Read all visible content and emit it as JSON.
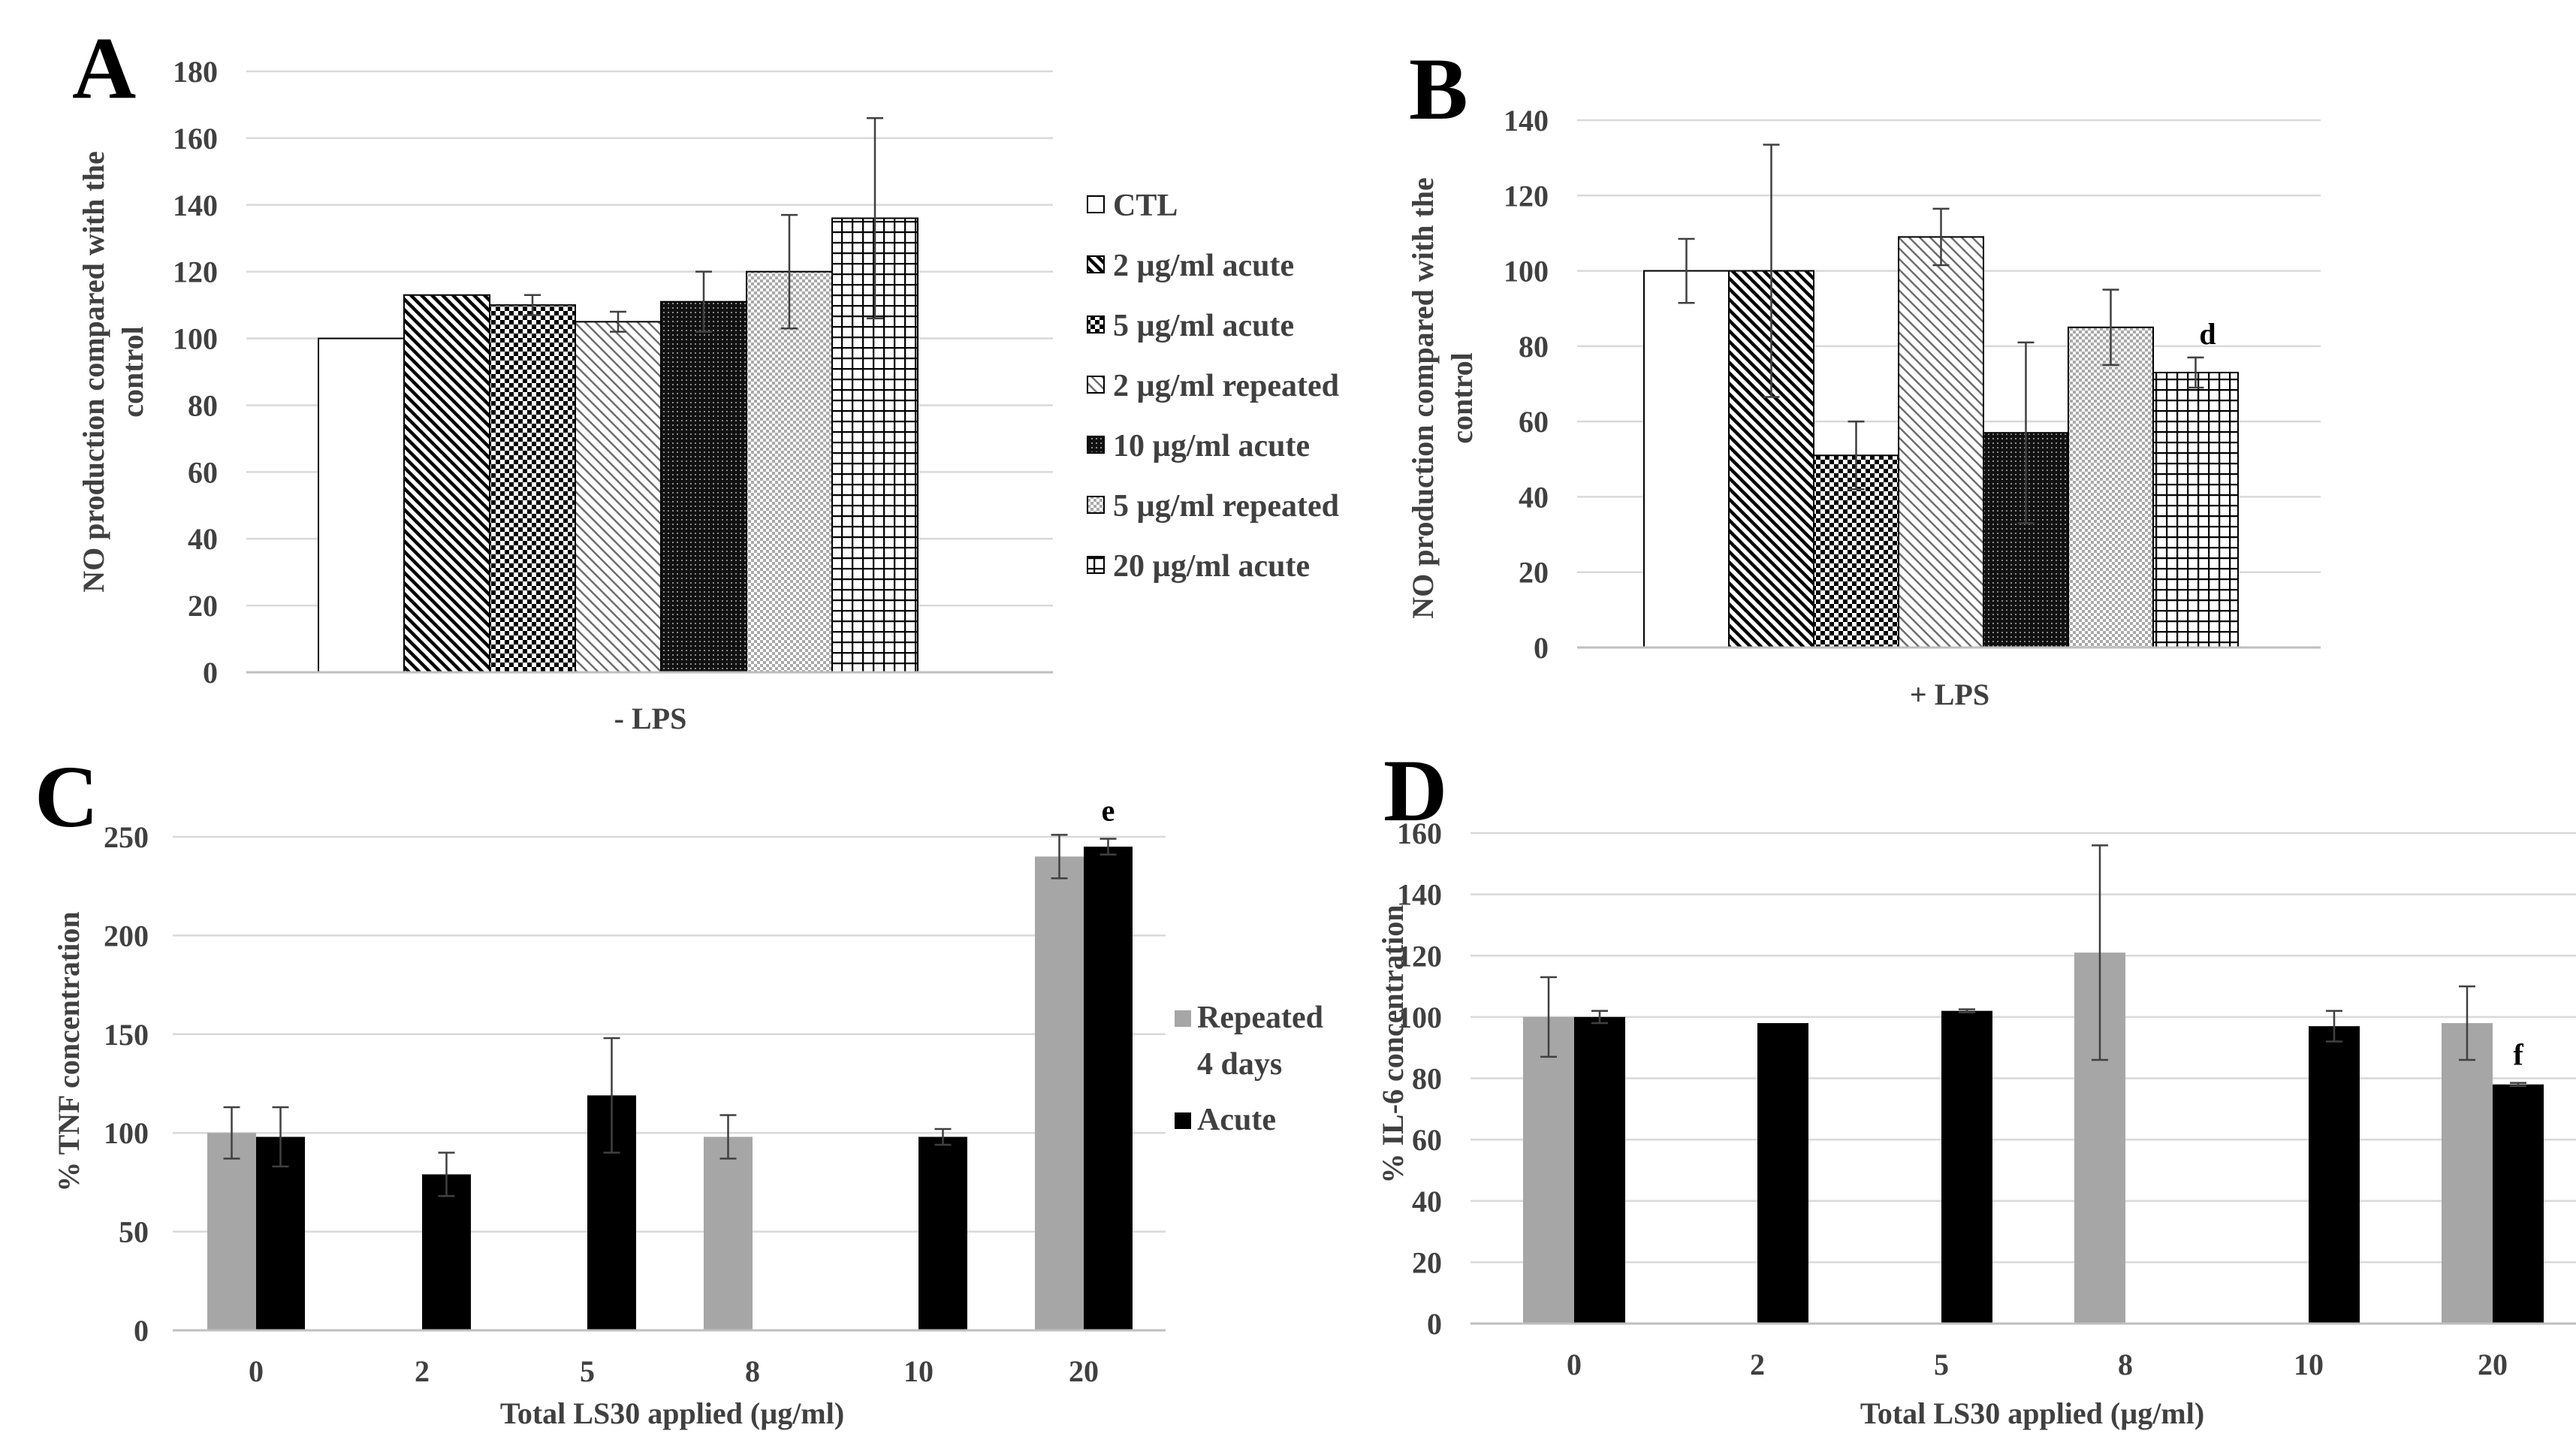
{
  "colors": {
    "grid": "#d9d9d9",
    "axis": "#bfbfbf",
    "text": "#404040",
    "bar_outline": "#000000",
    "repeated": "#a6a6a6",
    "acute": "#000000",
    "error_bar": "#404040"
  },
  "chart_data": [
    {
      "panel": "A",
      "type": "bar",
      "title": "",
      "category_label": "- LPS",
      "ylabel_line1": "NO production compared with the",
      "ylabel_line2": "control",
      "ylim": [
        0,
        180
      ],
      "yticks": [
        "0",
        "20",
        "40",
        "60",
        "80",
        "100",
        "120",
        "140",
        "160",
        "180"
      ],
      "grid": true,
      "legend_placement": "right",
      "series": [
        {
          "name": "CTL",
          "pattern": "white",
          "value": 100,
          "error": 0
        },
        {
          "name": "2 µg/ml acute",
          "pattern": "diag-wide",
          "value": 113,
          "error": 0
        },
        {
          "name": "5 µg/ml acute",
          "pattern": "checker",
          "value": 110,
          "error": 3
        },
        {
          "name": "2 µg/ml repeated",
          "pattern": "diag-light",
          "value": 105,
          "error": 3
        },
        {
          "name": "10 µg/ml acute",
          "pattern": "dark-dots",
          "value": 111,
          "error": 9
        },
        {
          "name": "5 µg/ml repeated",
          "pattern": "light-dots",
          "value": 120,
          "error": 17
        },
        {
          "name": "20 µg/ml acute",
          "pattern": "grid",
          "value": 136,
          "error": 30
        }
      ]
    },
    {
      "panel": "B",
      "type": "bar",
      "title": "",
      "category_label": "+ LPS",
      "ylabel_line1": "NO production compared with the",
      "ylabel_line2": "control",
      "ylim": [
        0,
        140
      ],
      "yticks": [
        "0",
        "20",
        "40",
        "60",
        "80",
        "100",
        "120",
        "140"
      ],
      "grid": true,
      "series": [
        {
          "name": "CTL",
          "pattern": "white",
          "value": 100,
          "error": 8.5,
          "label": ""
        },
        {
          "name": "2 µg/ml acute",
          "pattern": "diag-wide",
          "value": 100,
          "error": 33.5,
          "label": ""
        },
        {
          "name": "5 µg/ml acute",
          "pattern": "checker",
          "value": 51,
          "error": 9,
          "label": ""
        },
        {
          "name": "2 µg/ml repeated",
          "pattern": "diag-light",
          "value": 109,
          "error": 7.5,
          "label": ""
        },
        {
          "name": "10 µg/ml acute",
          "pattern": "dark-dots",
          "value": 57,
          "error": 24,
          "label": ""
        },
        {
          "name": "5 µg/ml repeated",
          "pattern": "light-dots",
          "value": 85,
          "error": 10,
          "label": ""
        },
        {
          "name": "20 µg/ml acute",
          "pattern": "grid",
          "value": 73,
          "error": 4,
          "label": "d"
        }
      ]
    },
    {
      "panel": "C",
      "type": "bar",
      "title": "",
      "xlabel": "Total LS30 applied (µg/ml)",
      "ylabel": "% TNF concentration",
      "categories": [
        "0",
        "2",
        "5",
        "8",
        "10",
        "20"
      ],
      "ylim": [
        0,
        250
      ],
      "yticks": [
        "0",
        "50",
        "100",
        "150",
        "200",
        "250"
      ],
      "grid": true,
      "legend_placement": "right",
      "legend_repeated_line1": "Repeated",
      "legend_repeated_line2": "4 days",
      "series": [
        {
          "name": "Repeated 4 days",
          "values": [
            100,
            null,
            null,
            98,
            null,
            240
          ],
          "errors": [
            13,
            null,
            null,
            11,
            null,
            11
          ],
          "labels": [
            "",
            "",
            "",
            "",
            "",
            ""
          ]
        },
        {
          "name": "Acute",
          "values": [
            98,
            79,
            119,
            null,
            98,
            245
          ],
          "errors": [
            15,
            11,
            29,
            null,
            4,
            4
          ],
          "labels": [
            "",
            "",
            "",
            "",
            "",
            "e"
          ]
        }
      ]
    },
    {
      "panel": "D",
      "type": "bar",
      "title": "",
      "xlabel": "Total LS30 applied (µg/ml)",
      "ylabel": "% IL-6 concentration",
      "categories": [
        "0",
        "2",
        "5",
        "8",
        "10",
        "20"
      ],
      "ylim": [
        0,
        160
      ],
      "yticks": [
        "0",
        "20",
        "40",
        "60",
        "80",
        "100",
        "120",
        "140",
        "160"
      ],
      "grid": true,
      "series": [
        {
          "name": "Repeated 4 days",
          "values": [
            100,
            null,
            null,
            121,
            null,
            98
          ],
          "errors": [
            13,
            null,
            null,
            35,
            null,
            12
          ],
          "labels": [
            "",
            "",
            "",
            "",
            "",
            ""
          ]
        },
        {
          "name": "Acute",
          "values": [
            100,
            98,
            102,
            null,
            97,
            78
          ],
          "errors": [
            2,
            0,
            0.5,
            null,
            5,
            0.5
          ],
          "labels": [
            "",
            "",
            "",
            "",
            "",
            "f"
          ]
        }
      ]
    }
  ]
}
